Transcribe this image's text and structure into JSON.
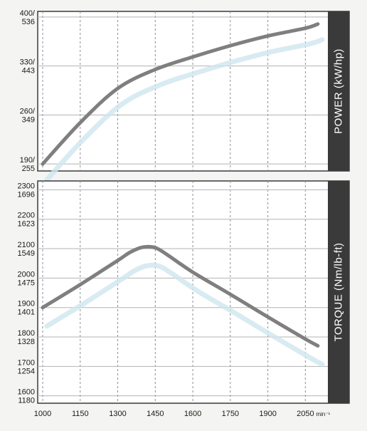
{
  "colors": {
    "page_bg": "#f4f4f2",
    "plot_bg": "#ffffff",
    "frame": "#3a3a3a",
    "grid_h": "#b3b3b3",
    "grid_v": "#8d8d9a",
    "band": "#3a3a3a",
    "band_text": "#ffffff",
    "curve": "#7f7f7f",
    "curve_shadow": "#cfe6ef",
    "tick_text": "#1a1a1a"
  },
  "chart_data": [
    {
      "type": "line",
      "title": "",
      "side_label": "POWER (kW/hp)",
      "xlabel": "",
      "ylabel": "POWER (kW/hp)",
      "x": [
        1000,
        1150,
        1300,
        1450,
        1600,
        1750,
        1900,
        2050,
        2100
      ],
      "series": [
        {
          "values": [
            190,
            249,
            298,
            325,
            343,
            359,
            373,
            384,
            390
          ]
        }
      ],
      "xlim": [
        980,
        2140
      ],
      "ylim": [
        180,
        408
      ],
      "yticks": [
        {
          "value": 190,
          "line1": "190/",
          "line2": "255"
        },
        {
          "value": 260,
          "line1": "260/",
          "line2": "349"
        },
        {
          "value": 330,
          "line1": "330/",
          "line2": "443"
        },
        {
          "value": 400,
          "line1": "400/",
          "line2": "536"
        }
      ],
      "grid": true
    },
    {
      "type": "line",
      "title": "",
      "side_label": "TORQUE (Nm/lb-ft)",
      "xlabel": "",
      "ylabel": "TORQUE (Nm/lb-ft)",
      "x": [
        1000,
        1150,
        1300,
        1350,
        1400,
        1450,
        1500,
        1600,
        1750,
        1900,
        2050,
        2100
      ],
      "series": [
        {
          "values": [
            1900,
            1978,
            2060,
            2088,
            2105,
            2103,
            2078,
            2020,
            1945,
            1868,
            1793,
            1770
          ]
        }
      ],
      "xlim": [
        980,
        2140
      ],
      "ylim": [
        1575,
        2330
      ],
      "yticks": [
        {
          "value": 1600,
          "line1": "1600",
          "line2": "1180"
        },
        {
          "value": 1700,
          "line1": "1700",
          "line2": "1254"
        },
        {
          "value": 1800,
          "line1": "1800",
          "line2": "1328"
        },
        {
          "value": 1900,
          "line1": "1900",
          "line2": "1401"
        },
        {
          "value": 2000,
          "line1": "2000",
          "line2": "1475"
        },
        {
          "value": 2100,
          "line1": "2100",
          "line2": "1549"
        },
        {
          "value": 2200,
          "line1": "2200",
          "line2": "1623"
        },
        {
          "value": 2300,
          "line1": "2300",
          "line2": "1696"
        }
      ],
      "grid": true
    }
  ],
  "x_axis": {
    "tick_values": [
      1000,
      1150,
      1300,
      1450,
      1600,
      1750,
      1900,
      2050
    ],
    "tick_labels": [
      "1000",
      "1150",
      "1300",
      "1450",
      "1600",
      "1750",
      "1900",
      "2050"
    ],
    "unit_label": "min⁻¹"
  }
}
